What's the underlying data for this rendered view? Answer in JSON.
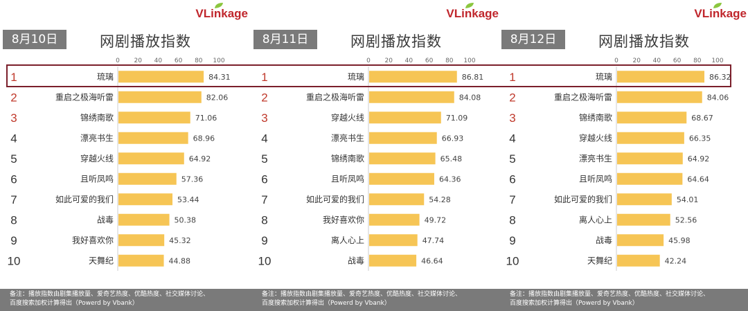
{
  "brand": "VLinkage",
  "brand_parts": {
    "a": "VL",
    "b": "i",
    "c": "nkage"
  },
  "rank_colors": {
    "top": "#c0392b",
    "rest": "#333333"
  },
  "bar_color": "#f6c555",
  "chart_data": [
    {
      "type": "bar",
      "date": "8月10日",
      "title": "网剧播放指数",
      "ticks": [
        "0",
        "20",
        "40",
        "60",
        "80",
        "100"
      ],
      "xlim": [
        0,
        100
      ],
      "ranks": [
        "1",
        "2",
        "3",
        "4",
        "5",
        "6",
        "7",
        "8",
        "9",
        "10"
      ],
      "categories": [
        "琉璃",
        "重启之极海听雷",
        "锦绣南歌",
        "漂亮书生",
        "穿越火线",
        "且听凤鸣",
        "如此可爱的我们",
        "战毒",
        "我好喜欢你",
        "天舞纪"
      ],
      "values": [
        84.31,
        82.06,
        71.06,
        68.96,
        64.92,
        57.36,
        53.44,
        50.38,
        45.32,
        44.88
      ],
      "value_labels": [
        "84.31",
        "82.06",
        "71.06",
        "68.96",
        "64.92",
        "57.36",
        "53.44",
        "50.38",
        "45.32",
        "44.88"
      ]
    },
    {
      "type": "bar",
      "date": "8月11日",
      "title": "网剧播放指数",
      "ticks": [
        "0",
        "20",
        "40",
        "60",
        "80",
        "100"
      ],
      "xlim": [
        0,
        100
      ],
      "ranks": [
        "1",
        "2",
        "3",
        "4",
        "5",
        "6",
        "7",
        "8",
        "9",
        "10"
      ],
      "categories": [
        "琉璃",
        "重启之极海听雷",
        "穿越火线",
        "漂亮书生",
        "锦绣南歌",
        "且听凤鸣",
        "如此可爱的我们",
        "我好喜欢你",
        "离人心上",
        "战毒"
      ],
      "values": [
        86.81,
        84.08,
        71.09,
        66.93,
        65.48,
        64.36,
        54.28,
        49.72,
        47.74,
        46.64
      ],
      "value_labels": [
        "86.81",
        "84.08",
        "71.09",
        "66.93",
        "65.48",
        "64.36",
        "54.28",
        "49.72",
        "47.74",
        "46.64"
      ]
    },
    {
      "type": "bar",
      "date": "8月12日",
      "title": "网剧播放指数",
      "ticks": [
        "0",
        "20",
        "40",
        "60",
        "80",
        "100"
      ],
      "xlim": [
        0,
        100
      ],
      "ranks": [
        "1",
        "2",
        "3",
        "4",
        "5",
        "6",
        "7",
        "8",
        "9",
        "10"
      ],
      "categories": [
        "琉璃",
        "重启之极海听雷",
        "锦绣南歌",
        "穿越火线",
        "漂亮书生",
        "且听凤鸣",
        "如此可爱的我们",
        "离人心上",
        "战毒",
        "天舞纪"
      ],
      "values": [
        86.32,
        84.06,
        68.67,
        66.35,
        64.92,
        64.64,
        54.01,
        52.56,
        45.98,
        42.24
      ],
      "value_labels": [
        "86.32",
        "84.06",
        "68.67",
        "66.35",
        "64.92",
        "64.64",
        "54.01",
        "52.56",
        "45.98",
        "42.24"
      ]
    }
  ],
  "footer": {
    "note_line1": "备注：播放指数由剧集播放量、爱奇艺热度、优酷热度、社交媒体讨论、",
    "note_line2": "百度搜索加权计算得出（Powerd by Vbank）"
  }
}
